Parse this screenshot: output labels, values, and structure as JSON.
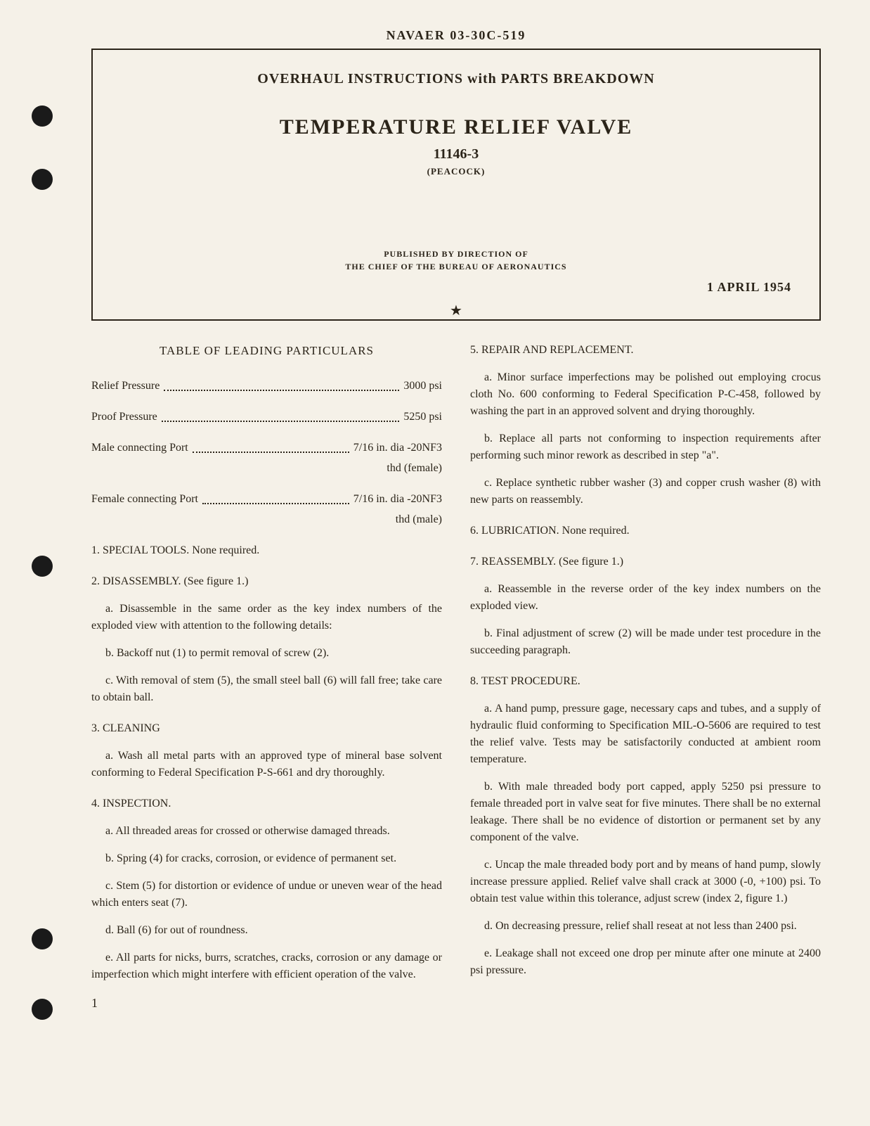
{
  "header_id": "NAVAER 03-30C-519",
  "title_box": {
    "subtitle": "OVERHAUL INSTRUCTIONS with PARTS BREAKDOWN",
    "main_title": "TEMPERATURE RELIEF VALVE",
    "part_number": "11146-3",
    "manufacturer": "(PEACOCK)",
    "pub_line1": "PUBLISHED BY DIRECTION OF",
    "pub_line2": "THE CHIEF OF THE BUREAU OF AERONAUTICS",
    "date": "1 APRIL 1954"
  },
  "star": "★",
  "left_col": {
    "toc_heading": "TABLE OF LEADING PARTICULARS",
    "toc": [
      {
        "label": "Relief Pressure",
        "value": "3000 psi",
        "sub": null
      },
      {
        "label": "Proof Pressure",
        "value": "5250 psi",
        "sub": null
      },
      {
        "label": "Male connecting Port",
        "value": "7/16 in. dia -20NF3",
        "sub": "thd (female)"
      },
      {
        "label": "Female connecting Port",
        "value": "7/16 in. dia -20NF3",
        "sub": "thd (male)"
      }
    ],
    "sections": [
      "1. SPECIAL TOOLS. None required.",
      "2. DISASSEMBLY. (See figure 1.)"
    ],
    "paras1": [
      "a. Disassemble in the same order as the key index numbers of the exploded view with attention to the following details:",
      "b. Backoff nut (1) to permit removal of screw (2).",
      "c. With removal of stem (5), the small steel ball (6) will fall free; take care to obtain ball."
    ],
    "cleaning_heading": "3. CLEANING",
    "cleaning_para": "a. Wash all metal parts with an approved type of mineral base solvent conforming to Federal Specification P-S-661 and dry thoroughly.",
    "inspection_heading": "4. INSPECTION.",
    "inspection_paras": [
      "a. All threaded areas for crossed or otherwise damaged threads.",
      "b. Spring (4) for cracks, corrosion, or evidence of permanent set.",
      "c. Stem (5) for distortion or evidence of undue or uneven wear of the head which enters seat (7).",
      "d. Ball (6) for out of roundness.",
      "e. All parts for nicks, burrs, scratches, cracks, corrosion or any damage or imperfection which might interfere with efficient operation of the valve."
    ],
    "page_number": "1"
  },
  "right_col": {
    "repair_heading": "5. REPAIR AND REPLACEMENT.",
    "repair_paras": [
      "a. Minor surface imperfections may be polished out employing crocus cloth No. 600 conforming to Federal Specification P-C-458, followed by washing the part in an approved solvent and drying thoroughly.",
      "b. Replace all parts not conforming to inspection requirements after performing such minor rework as described in step \"a\".",
      "c. Replace synthetic rubber washer (3) and copper crush washer (8) with new parts on reassembly."
    ],
    "lubrication": "6. LUBRICATION. None required.",
    "reassembly_heading": "7. REASSEMBLY. (See figure 1.)",
    "reassembly_paras": [
      "a. Reassemble in the reverse order of the key index numbers on the exploded view.",
      "b. Final adjustment of screw (2) will be made under test procedure in the succeeding paragraph."
    ],
    "test_heading": "8. TEST PROCEDURE.",
    "test_paras": [
      "a. A hand pump, pressure gage, necessary caps and tubes, and a supply of hydraulic fluid conforming to Specification MIL-O-5606 are required to test the relief valve. Tests may be satisfactorily conducted at ambient room temperature.",
      "b. With male threaded body port capped, apply 5250 psi pressure to female threaded port in valve seat for five minutes. There shall be no external leakage. There shall be no evidence of distortion or permanent set by any component of the valve.",
      "c. Uncap the male threaded body port and by means of hand pump, slowly increase pressure applied. Relief valve shall crack at 3000 (-0, +100) psi. To obtain test value within this tolerance, adjust screw (index 2, figure 1.)",
      "d. On decreasing pressure, relief shall reseat at not less than 2400 psi.",
      "e. Leakage shall not exceed one drop per minute after one minute at 2400 psi pressure."
    ]
  }
}
